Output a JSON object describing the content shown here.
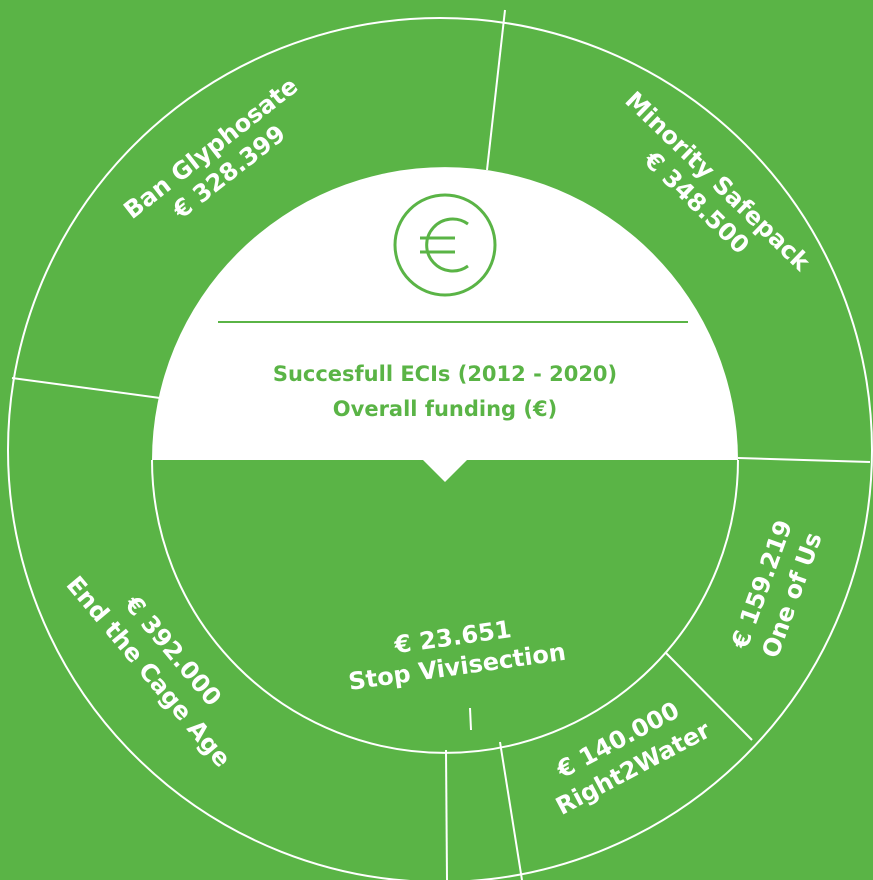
{
  "title": "Succesfull ECIs (2012 - 2020)",
  "subtitle": "Overall funding (€)",
  "segments": [
    {
      "name": "Ban Glyphosate",
      "amount": "€ 328.399"
    },
    {
      "name": "Minority Safepack",
      "amount": "€ 348.500"
    },
    {
      "name": "One of Us",
      "amount": "€ 159.219"
    },
    {
      "name": "Right2Water",
      "amount": "€ 140.000"
    },
    {
      "name": "Stop Vivisection",
      "amount": "€ 23.651"
    },
    {
      "name": "End the Cage Age",
      "amount": "€ 392.000"
    }
  ]
}
